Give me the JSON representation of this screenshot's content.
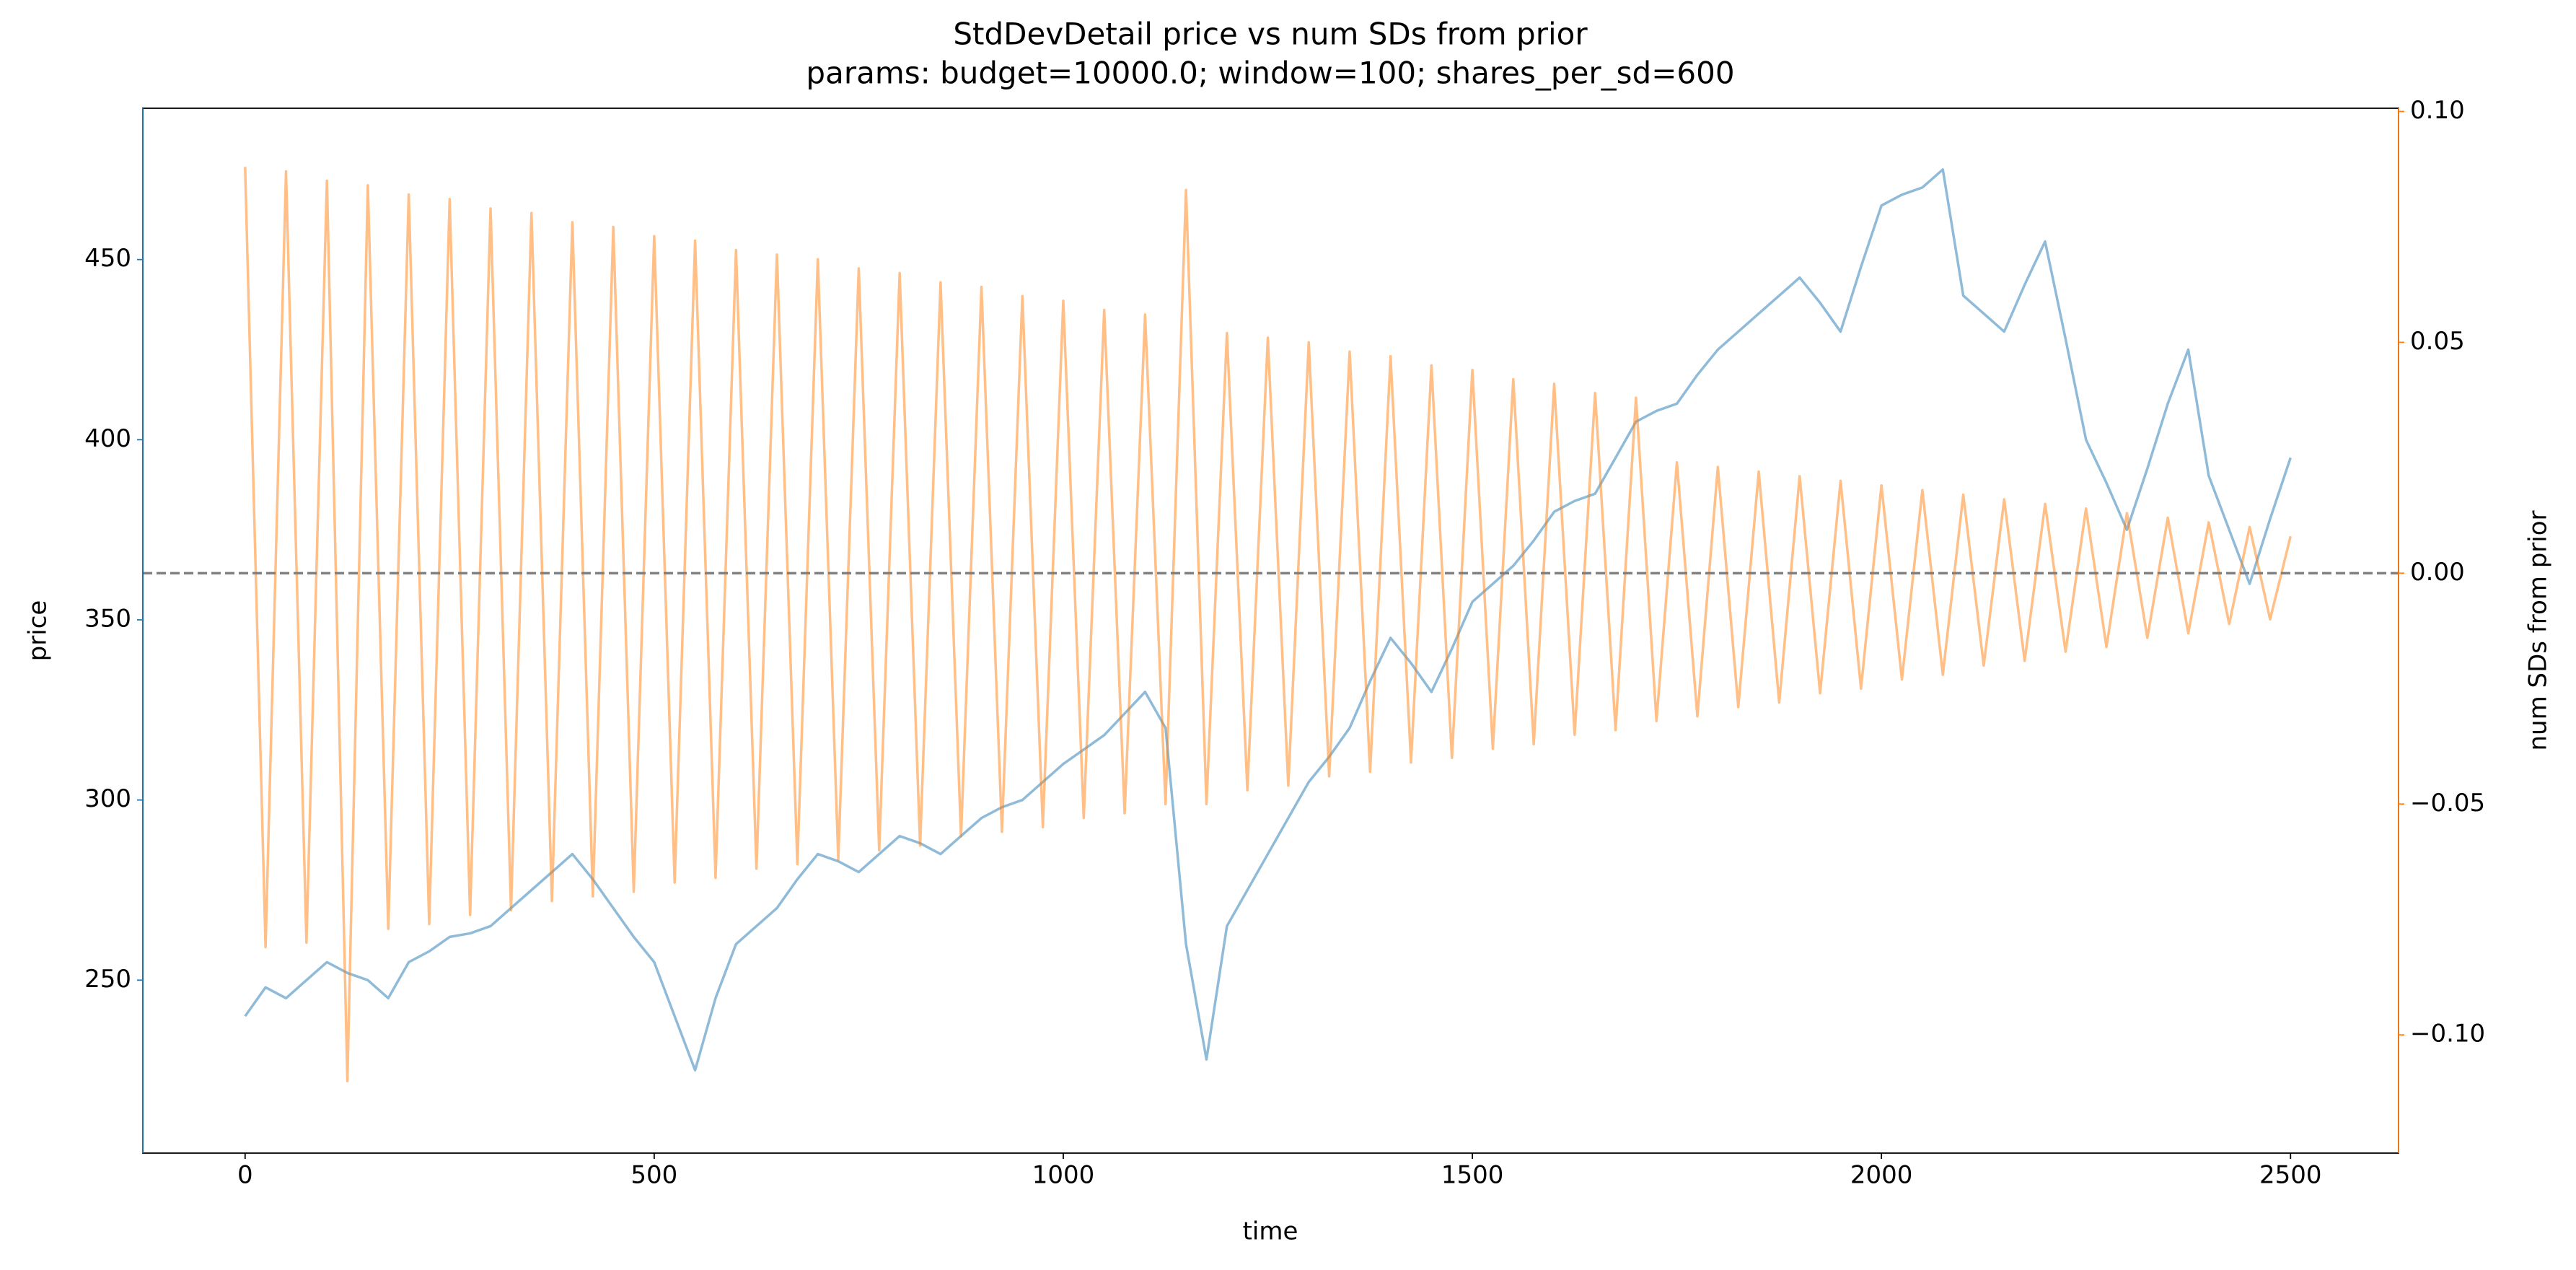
{
  "chart_data": {
    "type": "line",
    "title": "StdDevDetail price vs num SDs from prior",
    "subtitle": "params: budget=10000.0; window=100; shares_per_sd=600",
    "x_label": "time",
    "y_label": "price",
    "y2_label": "num SDs from prior",
    "x": [
      0,
      25,
      50,
      75,
      100,
      125,
      150,
      175,
      200,
      225,
      250,
      275,
      300,
      325,
      350,
      375,
      400,
      425,
      450,
      475,
      500,
      525,
      550,
      575,
      600,
      625,
      650,
      675,
      700,
      725,
      750,
      775,
      800,
      825,
      850,
      875,
      900,
      925,
      950,
      975,
      1000,
      1025,
      1050,
      1075,
      1100,
      1125,
      1150,
      1175,
      1200,
      1225,
      1250,
      1275,
      1300,
      1325,
      1350,
      1375,
      1400,
      1425,
      1450,
      1475,
      1500,
      1525,
      1550,
      1575,
      1600,
      1625,
      1650,
      1675,
      1700,
      1725,
      1750,
      1775,
      1800,
      1825,
      1850,
      1875,
      1900,
      1925,
      1950,
      1975,
      2000,
      2025,
      2050,
      2075,
      2100,
      2125,
      2150,
      2175,
      2200,
      2225,
      2250,
      2275,
      2300,
      2325,
      2350,
      2375,
      2400,
      2425,
      2450,
      2475,
      2500
    ],
    "series": [
      {
        "color": "#1f77b4",
        "axis": "y",
        "values": [
          240,
          248,
          245,
          250,
          255,
          252,
          250,
          245,
          255,
          258,
          262,
          263,
          265,
          270,
          275,
          280,
          285,
          278,
          270,
          262,
          255,
          240,
          225,
          245,
          260,
          265,
          270,
          278,
          285,
          283,
          280,
          285,
          290,
          288,
          285,
          290,
          295,
          298,
          300,
          305,
          310,
          314,
          318,
          324,
          330,
          320,
          260,
          228,
          265,
          275,
          285,
          295,
          305,
          312,
          320,
          333,
          345,
          338,
          330,
          342,
          355,
          360,
          365,
          372,
          380,
          383,
          385,
          395,
          405,
          408,
          410,
          418,
          425,
          430,
          435,
          440,
          445,
          438,
          430,
          448,
          465,
          468,
          470,
          475,
          440,
          435,
          430,
          443,
          455,
          428,
          400,
          388,
          375,
          392,
          410,
          425,
          390,
          375,
          360,
          378,
          395
        ]
      },
      {
        "color": "#ff7f0e",
        "axis": "y2",
        "values": [
          0.088,
          -0.081,
          0.087,
          -0.08,
          0.085,
          -0.11,
          0.084,
          -0.077,
          0.082,
          -0.076,
          0.081,
          -0.074,
          0.079,
          -0.073,
          0.078,
          -0.071,
          0.076,
          -0.07,
          0.075,
          -0.069,
          0.073,
          -0.067,
          0.072,
          -0.066,
          0.07,
          -0.064,
          0.069,
          -0.063,
          0.068,
          -0.062,
          0.066,
          -0.06,
          0.065,
          -0.059,
          0.063,
          -0.057,
          0.062,
          -0.056,
          0.06,
          -0.055,
          0.059,
          -0.053,
          0.057,
          -0.052,
          0.056,
          -0.05,
          0.083,
          -0.05,
          0.052,
          -0.047,
          0.051,
          -0.046,
          0.05,
          -0.044,
          0.048,
          -0.043,
          0.047,
          -0.041,
          0.045,
          -0.04,
          0.044,
          -0.038,
          0.042,
          -0.037,
          0.041,
          -0.035,
          0.039,
          -0.034,
          0.038,
          -0.032,
          0.024,
          -0.031,
          0.023,
          -0.029,
          0.022,
          -0.028,
          0.021,
          -0.026,
          0.02,
          -0.025,
          0.019,
          -0.023,
          0.018,
          -0.022,
          0.017,
          -0.02,
          0.016,
          -0.019,
          0.015,
          -0.017,
          0.014,
          -0.016,
          0.013,
          -0.014,
          0.012,
          -0.013,
          0.011,
          -0.011,
          0.01,
          -0.01,
          0.008
        ]
      }
    ],
    "hline": {
      "value": 0,
      "axis": "y2",
      "color": "#808080"
    },
    "xlim": [
      -125,
      2632
    ],
    "xticks": [
      0,
      500,
      1000,
      1500,
      2000,
      2500
    ],
    "ylim": [
      202,
      492
    ],
    "yticks": [
      250,
      300,
      350,
      400,
      450
    ],
    "y_color": "#1f77b4",
    "y2lim": [
      -0.1256,
      0.1007
    ],
    "y2ticks": [
      {
        "value": -0.1,
        "label": "−0.10"
      },
      {
        "value": -0.05,
        "label": "−0.05"
      },
      {
        "value": 0,
        "label": "0.00"
      },
      {
        "value": 0.05,
        "label": "0.05"
      },
      {
        "value": 0.1,
        "label": "0.10"
      }
    ],
    "y2_color": "#ff7f0e"
  }
}
